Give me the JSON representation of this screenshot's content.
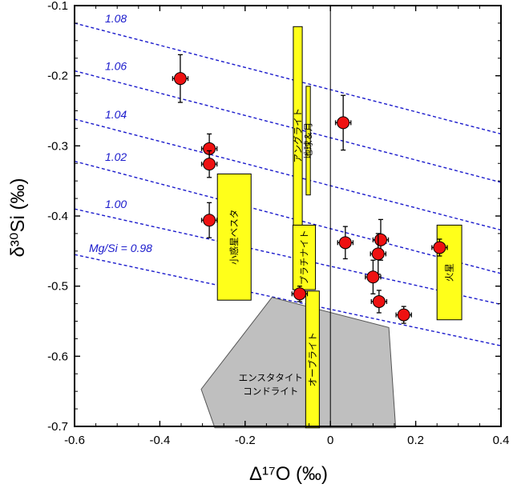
{
  "chart_data": {
    "type": "scatter",
    "title": "",
    "xlabel": "Δ¹⁷O (‰)",
    "ylabel": "δ³⁰Si (‰)",
    "xlim": [
      -0.6,
      0.4
    ],
    "ylim": [
      -0.7,
      -0.1
    ],
    "x_ticks": [
      -0.6,
      -0.4,
      -0.2,
      0,
      0.2,
      0.4
    ],
    "x_tick_labels": [
      "-0.6",
      "-0.4",
      "-0.2",
      "0",
      "0.2",
      "0.4"
    ],
    "y_ticks": [
      -0.1,
      -0.2,
      -0.3,
      -0.4,
      -0.5,
      -0.6,
      -0.7
    ],
    "y_tick_labels": [
      "-0.1",
      "-0.2",
      "-0.3",
      "-0.4",
      "-0.5",
      "-0.6",
      "-0.7"
    ],
    "mg_si_lines": [
      {
        "label": "1.08",
        "y_at_xmin": -0.125,
        "y_at_xmax": -0.283
      },
      {
        "label": "1.06",
        "y_at_xmin": -0.193,
        "y_at_xmax": -0.352
      },
      {
        "label": "1.04",
        "y_at_xmin": -0.262,
        "y_at_xmax": -0.42
      },
      {
        "label": "1.02",
        "y_at_xmin": -0.322,
        "y_at_xmax": -0.482
      },
      {
        "label": "1.00",
        "y_at_xmin": -0.39,
        "y_at_xmax": -0.526
      },
      {
        "label": "Mg/Si = 0.98",
        "y_at_xmin": -0.455,
        "y_at_xmax": -0.585
      }
    ],
    "boxes": [
      {
        "name": "アングライト",
        "x": [
          -0.087,
          -0.066
        ],
        "y": [
          -0.13,
          -0.44
        ]
      },
      {
        "name": "地球＆月",
        "x": [
          -0.057,
          -0.047
        ],
        "y": [
          -0.215,
          -0.37
        ]
      },
      {
        "name": "小惑星ベスタ",
        "x": [
          -0.265,
          -0.186
        ],
        "y": [
          -0.34,
          -0.52
        ]
      },
      {
        "name": "プラチナイト",
        "x": [
          -0.088,
          -0.035
        ],
        "y": [
          -0.413,
          -0.505
        ]
      },
      {
        "name": "オーブライト",
        "x": [
          -0.058,
          -0.026
        ],
        "y": [
          -0.507,
          -0.702
        ]
      },
      {
        "name": "火星",
        "x": [
          0.25,
          0.308
        ],
        "y": [
          -0.413,
          -0.548
        ]
      }
    ],
    "enstatite_polygon": {
      "label_lines": [
        "エンスタタイト",
        "コンドライト"
      ],
      "points": [
        [
          -0.303,
          -0.647
        ],
        [
          -0.137,
          -0.516
        ],
        [
          0.137,
          -0.559
        ],
        [
          0.153,
          -0.702
        ],
        [
          -0.271,
          -0.702
        ]
      ]
    },
    "points": [
      {
        "x": -0.352,
        "y": -0.204,
        "xerr": 0.018,
        "yerr": 0.034
      },
      {
        "x": -0.284,
        "y": -0.304,
        "xerr": 0.018,
        "yerr": 0.021
      },
      {
        "x": -0.284,
        "y": -0.326,
        "xerr": 0.018,
        "yerr": 0.019
      },
      {
        "x": -0.284,
        "y": -0.406,
        "xerr": 0.018,
        "yerr": 0.025
      },
      {
        "x": -0.072,
        "y": -0.511,
        "xerr": 0.018,
        "yerr": 0.011
      },
      {
        "x": 0.03,
        "y": -0.267,
        "xerr": 0.018,
        "yerr": 0.039
      },
      {
        "x": 0.035,
        "y": -0.438,
        "xerr": 0.018,
        "yerr": 0.023
      },
      {
        "x": 0.118,
        "y": -0.434,
        "xerr": 0.018,
        "yerr": 0.029
      },
      {
        "x": 0.112,
        "y": -0.454,
        "xerr": 0.018,
        "yerr": 0.029
      },
      {
        "x": 0.1,
        "y": -0.487,
        "xerr": 0.018,
        "yerr": 0.024
      },
      {
        "x": 0.114,
        "y": -0.522,
        "xerr": 0.018,
        "yerr": 0.016
      },
      {
        "x": 0.172,
        "y": -0.541,
        "xerr": 0.018,
        "yerr": 0.012
      },
      {
        "x": 0.256,
        "y": -0.445,
        "xerr": 0.018,
        "yerr": 0.012
      }
    ],
    "colors": {
      "point_fill": "#ee1111",
      "box_fill": "#ffff1a",
      "polygon_fill": "#bfbfbf",
      "mg_line": "#1a1acc",
      "zero_line": "#000000"
    }
  }
}
